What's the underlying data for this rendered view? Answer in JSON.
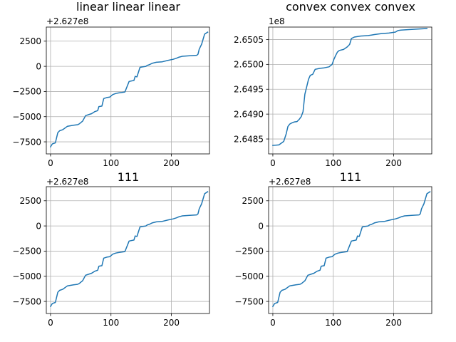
{
  "chart_data": [
    {
      "type": "line",
      "title": "linear linear linear",
      "offset_label": "+2.627e8",
      "grid": true,
      "xlim": [
        -7,
        263
      ],
      "ylim": [
        -8700,
        3900
      ],
      "xticks": [
        0,
        100,
        200
      ],
      "xtick_labels": [
        "0",
        "100",
        "200"
      ],
      "yticks": [
        -7500,
        -5000,
        -2500,
        0,
        2500
      ],
      "ytick_labels": [
        "−7500",
        "−5000",
        "−2500",
        "0",
        "2500"
      ],
      "color": "#1f77b4",
      "x": [
        0,
        3,
        8,
        12,
        15,
        20,
        28,
        38,
        45,
        48,
        53,
        58,
        63,
        68,
        73,
        78,
        80,
        85,
        88,
        93,
        98,
        103,
        108,
        112,
        118,
        123,
        130,
        138,
        140,
        143,
        148,
        153,
        158,
        160,
        163,
        168,
        175,
        185,
        195,
        203,
        208,
        212,
        218,
        230,
        242,
        244,
        246,
        250,
        253,
        255,
        260
      ],
      "y": [
        -8000,
        -7700,
        -7600,
        -6600,
        -6400,
        -6300,
        -5950,
        -5850,
        -5800,
        -5700,
        -5450,
        -4900,
        -4800,
        -4700,
        -4500,
        -4400,
        -4000,
        -3950,
        -3200,
        -3100,
        -3050,
        -2800,
        -2700,
        -2650,
        -2600,
        -2550,
        -1500,
        -1400,
        -1000,
        -1050,
        -100,
        -50,
        0,
        100,
        150,
        300,
        400,
        450,
        600,
        700,
        800,
        900,
        1000,
        1050,
        1100,
        1200,
        1700,
        2200,
        2800,
        3200,
        3400
      ]
    },
    {
      "type": "line",
      "title": "convex convex convex",
      "offset_label": "1e8",
      "grid": true,
      "xlim": [
        -7,
        263
      ],
      "ylim": [
        264820000.0,
        265075000.0
      ],
      "xticks": [
        0,
        100,
        200
      ],
      "xtick_labels": [
        "0",
        "100",
        "200"
      ],
      "yticks": [
        264850000.0,
        264900000.0,
        264950000.0,
        265000000.0,
        265050000.0
      ],
      "ytick_labels": [
        "2.6485",
        "2.6490",
        "2.6495",
        "2.6500",
        "2.6505"
      ],
      "color": "#1f77b4",
      "x": [
        0,
        10,
        18,
        22,
        25,
        28,
        31,
        35,
        40,
        44,
        47,
        50,
        53,
        55,
        57,
        59,
        62,
        66,
        70,
        78,
        85,
        93,
        98,
        101,
        104,
        107,
        110,
        117,
        123,
        127,
        130,
        135,
        145,
        158,
        163,
        168,
        180,
        192,
        203,
        207,
        212,
        225,
        240,
        255
      ],
      "y": [
        264837000.0,
        264838000.0,
        264845000.0,
        264860000.0,
        264875000.0,
        264880000.0,
        264882000.0,
        264884000.0,
        264885000.0,
        264890000.0,
        264895000.0,
        264905000.0,
        264940000.0,
        264950000.0,
        264960000.0,
        264970000.0,
        264978000.0,
        264980000.0,
        264990000.0,
        264992000.0,
        264993000.0,
        264995000.0,
        265000000.0,
        265010000.0,
        265018000.0,
        265025000.0,
        265028000.0,
        265030000.0,
        265035000.0,
        265040000.0,
        265052000.0,
        265055000.0,
        265057000.0,
        265058000.0,
        265059000.0,
        265060000.0,
        265062000.0,
        265063000.0,
        265065000.0,
        265068000.0,
        265069000.0,
        265070000.0,
        265071000.0,
        265072000.0
      ]
    },
    {
      "type": "line",
      "title": "111",
      "offset_label": "+2.627e8",
      "grid": true,
      "xlim": [
        -7,
        263
      ],
      "ylim": [
        -8700,
        3900
      ],
      "xticks": [
        0,
        100,
        200
      ],
      "xtick_labels": [
        "0",
        "100",
        "200"
      ],
      "yticks": [
        -7500,
        -5000,
        -2500,
        0,
        2500
      ],
      "ytick_labels": [
        "−7500",
        "−5000",
        "−2500",
        "0",
        "2500"
      ],
      "color": "#1f77b4",
      "x": [
        0,
        3,
        8,
        12,
        15,
        20,
        28,
        38,
        45,
        48,
        53,
        58,
        63,
        68,
        73,
        78,
        80,
        85,
        88,
        93,
        98,
        103,
        108,
        112,
        118,
        123,
        130,
        138,
        140,
        143,
        148,
        153,
        158,
        160,
        163,
        168,
        175,
        185,
        195,
        203,
        208,
        212,
        218,
        230,
        242,
        244,
        246,
        250,
        253,
        255,
        260
      ],
      "y": [
        -8000,
        -7700,
        -7600,
        -6600,
        -6400,
        -6300,
        -5950,
        -5850,
        -5800,
        -5700,
        -5450,
        -4900,
        -4800,
        -4700,
        -4500,
        -4400,
        -4000,
        -3950,
        -3200,
        -3100,
        -3050,
        -2800,
        -2700,
        -2650,
        -2600,
        -2550,
        -1500,
        -1400,
        -1000,
        -1050,
        -100,
        -50,
        0,
        100,
        150,
        300,
        400,
        450,
        600,
        700,
        800,
        900,
        1000,
        1050,
        1100,
        1200,
        1700,
        2200,
        2800,
        3200,
        3400
      ]
    },
    {
      "type": "line",
      "title": "111",
      "offset_label": "+2.627e8",
      "grid": true,
      "xlim": [
        -7,
        263
      ],
      "ylim": [
        -8700,
        3900
      ],
      "xticks": [
        0,
        100,
        200
      ],
      "xtick_labels": [
        "0",
        "100",
        "200"
      ],
      "yticks": [
        -7500,
        -5000,
        -2500,
        0,
        2500
      ],
      "ytick_labels": [
        "−7500",
        "−5000",
        "−2500",
        "0",
        "2500"
      ],
      "color": "#1f77b4",
      "x": [
        0,
        3,
        8,
        12,
        15,
        20,
        28,
        38,
        45,
        48,
        53,
        58,
        63,
        68,
        73,
        78,
        80,
        85,
        88,
        93,
        98,
        103,
        108,
        112,
        118,
        123,
        130,
        138,
        140,
        143,
        148,
        153,
        158,
        160,
        163,
        168,
        175,
        185,
        195,
        203,
        208,
        212,
        218,
        230,
        242,
        244,
        246,
        250,
        253,
        255,
        260
      ],
      "y": [
        -8000,
        -7700,
        -7600,
        -6600,
        -6400,
        -6300,
        -5950,
        -5850,
        -5800,
        -5700,
        -5450,
        -4900,
        -4800,
        -4700,
        -4500,
        -4400,
        -4000,
        -3950,
        -3200,
        -3100,
        -3050,
        -2800,
        -2700,
        -2650,
        -2600,
        -2550,
        -1500,
        -1400,
        -1000,
        -1050,
        -100,
        -50,
        0,
        100,
        150,
        300,
        400,
        450,
        600,
        700,
        800,
        900,
        1000,
        1050,
        1100,
        1200,
        1700,
        2200,
        2800,
        3200,
        3400
      ]
    }
  ]
}
